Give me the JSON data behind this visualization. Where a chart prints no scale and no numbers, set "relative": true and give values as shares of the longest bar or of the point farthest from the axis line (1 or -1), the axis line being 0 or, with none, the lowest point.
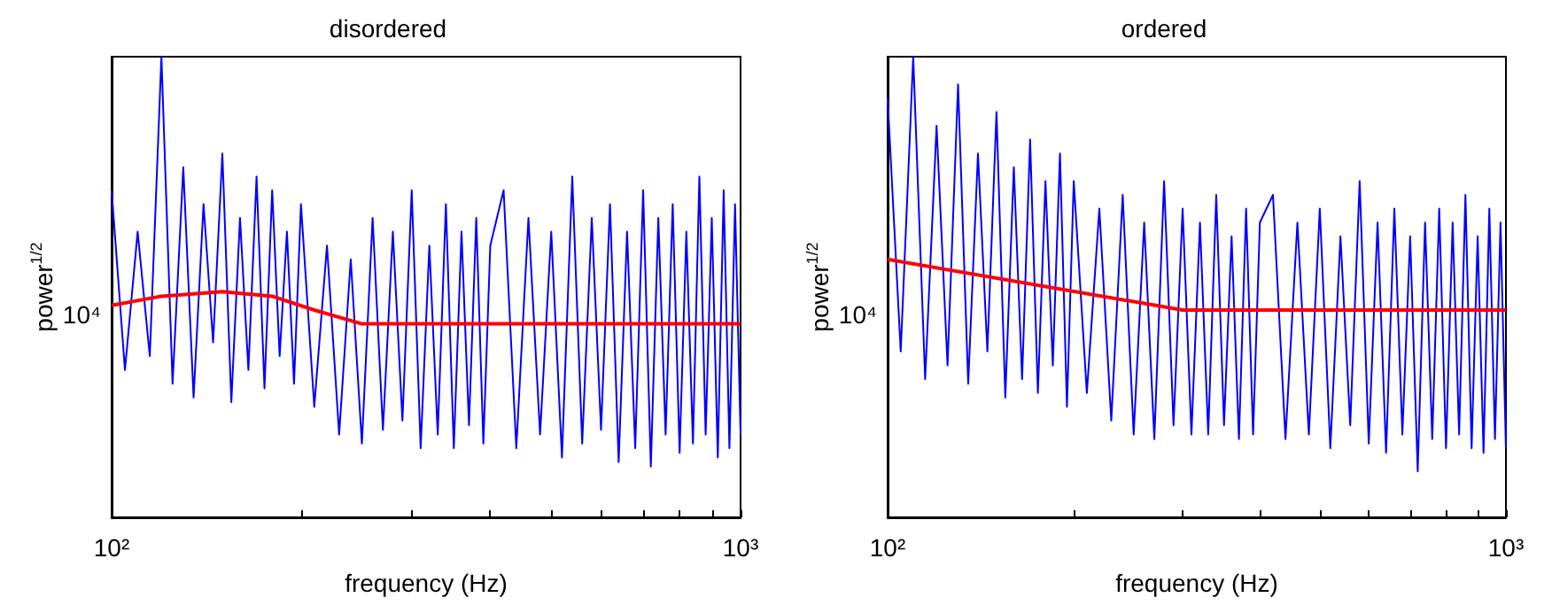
{
  "chart_data": [
    {
      "type": "line",
      "title": "disordered",
      "xlabel": "frequency (Hz)",
      "ylabel": "power$^{1/2}$",
      "log": "x",
      "relative": true,
      "xlim": [
        100,
        1000
      ],
      "annotations": [
        "10⁴"
      ],
      "xticks": [
        {
          "value": 100,
          "label": "10²"
        },
        {
          "value": 200,
          "label": null
        },
        {
          "value": 300,
          "label": null
        },
        {
          "value": 400,
          "label": null
        },
        {
          "value": 500,
          "label": null
        },
        {
          "value": 600,
          "label": null
        },
        {
          "value": 700,
          "label": null
        },
        {
          "value": 800,
          "label": null
        },
        {
          "value": 900,
          "label": null
        },
        {
          "value": 1000,
          "label": "10³"
        }
      ],
      "series": [
        {
          "color": "#0000ff",
          "x": [
            100,
            105,
            110,
            115,
            120,
            125,
            130,
            135,
            140,
            145,
            150,
            155,
            160,
            165,
            170,
            175,
            180,
            185,
            190,
            195,
            200,
            210,
            220,
            230,
            240,
            250,
            260,
            270,
            280,
            290,
            300,
            310,
            320,
            330,
            340,
            350,
            360,
            370,
            380,
            390,
            400,
            420,
            440,
            460,
            480,
            500,
            520,
            540,
            560,
            580,
            600,
            620,
            640,
            660,
            680,
            700,
            720,
            740,
            760,
            780,
            800,
            820,
            840,
            860,
            880,
            900,
            920,
            940,
            960,
            980,
            1000
          ],
          "values": [
            0.71,
            0.32,
            0.62,
            0.35,
            1,
            0.29,
            0.76,
            0.26,
            0.68,
            0.38,
            0.79,
            0.25,
            0.65,
            0.32,
            0.74,
            0.28,
            0.71,
            0.35,
            0.62,
            0.29,
            0.68,
            0.24,
            0.59,
            0.18,
            0.56,
            0.16,
            0.65,
            0.19,
            0.62,
            0.21,
            0.71,
            0.15,
            0.59,
            0.18,
            0.68,
            0.15,
            0.62,
            0.2,
            0.65,
            0.16,
            0.59,
            0.71,
            0.15,
            0.65,
            0.18,
            0.62,
            0.13,
            0.74,
            0.16,
            0.65,
            0.19,
            0.68,
            0.12,
            0.62,
            0.15,
            0.71,
            0.11,
            0.65,
            0.18,
            0.68,
            0.14,
            0.62,
            0.16,
            0.74,
            0.18,
            0.65,
            0.13,
            0.71,
            0.15,
            0.68,
            0.18
          ]
        },
        {
          "color": "#ff0000",
          "x": [
            100,
            120,
            150,
            180,
            210,
            250,
            1000
          ],
          "values": [
            0.46,
            0.48,
            0.49,
            0.48,
            0.45,
            0.42,
            0.42
          ]
        }
      ]
    },
    {
      "type": "line",
      "title": "ordered",
      "xlabel": "frequency (Hz)",
      "ylabel": "power$^{1/2}$",
      "log": "x",
      "relative": true,
      "xlim": [
        100,
        1000
      ],
      "annotations": [
        "10⁴"
      ],
      "xticks": [
        {
          "value": 100,
          "label": "10²"
        },
        {
          "value": 200,
          "label": null
        },
        {
          "value": 300,
          "label": null
        },
        {
          "value": 400,
          "label": null
        },
        {
          "value": 500,
          "label": null
        },
        {
          "value": 600,
          "label": null
        },
        {
          "value": 700,
          "label": null
        },
        {
          "value": 800,
          "label": null
        },
        {
          "value": 900,
          "label": null
        },
        {
          "value": 1000,
          "label": "10³"
        }
      ],
      "series": [
        {
          "color": "#0000ff",
          "x": [
            100,
            105,
            110,
            115,
            120,
            125,
            130,
            135,
            140,
            145,
            150,
            155,
            160,
            165,
            170,
            175,
            180,
            185,
            190,
            195,
            200,
            210,
            220,
            230,
            240,
            250,
            260,
            270,
            280,
            290,
            300,
            310,
            320,
            330,
            340,
            350,
            360,
            370,
            380,
            390,
            400,
            420,
            440,
            460,
            480,
            500,
            520,
            540,
            560,
            580,
            600,
            620,
            640,
            660,
            680,
            700,
            720,
            740,
            760,
            780,
            800,
            820,
            840,
            860,
            880,
            900,
            920,
            940,
            960,
            980,
            1000
          ],
          "values": [
            0.91,
            0.36,
            1,
            0.3,
            0.85,
            0.33,
            0.94,
            0.29,
            0.79,
            0.36,
            0.88,
            0.26,
            0.76,
            0.3,
            0.82,
            0.27,
            0.73,
            0.33,
            0.79,
            0.24,
            0.73,
            0.27,
            0.67,
            0.21,
            0.7,
            0.18,
            0.64,
            0.17,
            0.73,
            0.2,
            0.67,
            0.18,
            0.64,
            0.18,
            0.7,
            0.2,
            0.61,
            0.17,
            0.67,
            0.18,
            0.64,
            0.7,
            0.17,
            0.64,
            0.18,
            0.67,
            0.15,
            0.61,
            0.2,
            0.73,
            0.16,
            0.64,
            0.14,
            0.67,
            0.18,
            0.61,
            0.1,
            0.64,
            0.17,
            0.67,
            0.15,
            0.64,
            0.18,
            0.7,
            0.15,
            0.61,
            0.14,
            0.67,
            0.17,
            0.64,
            0.15
          ]
        },
        {
          "color": "#ff0000",
          "x": [
            100,
            300,
            1000
          ],
          "values": [
            0.56,
            0.45,
            0.45
          ]
        }
      ]
    }
  ]
}
